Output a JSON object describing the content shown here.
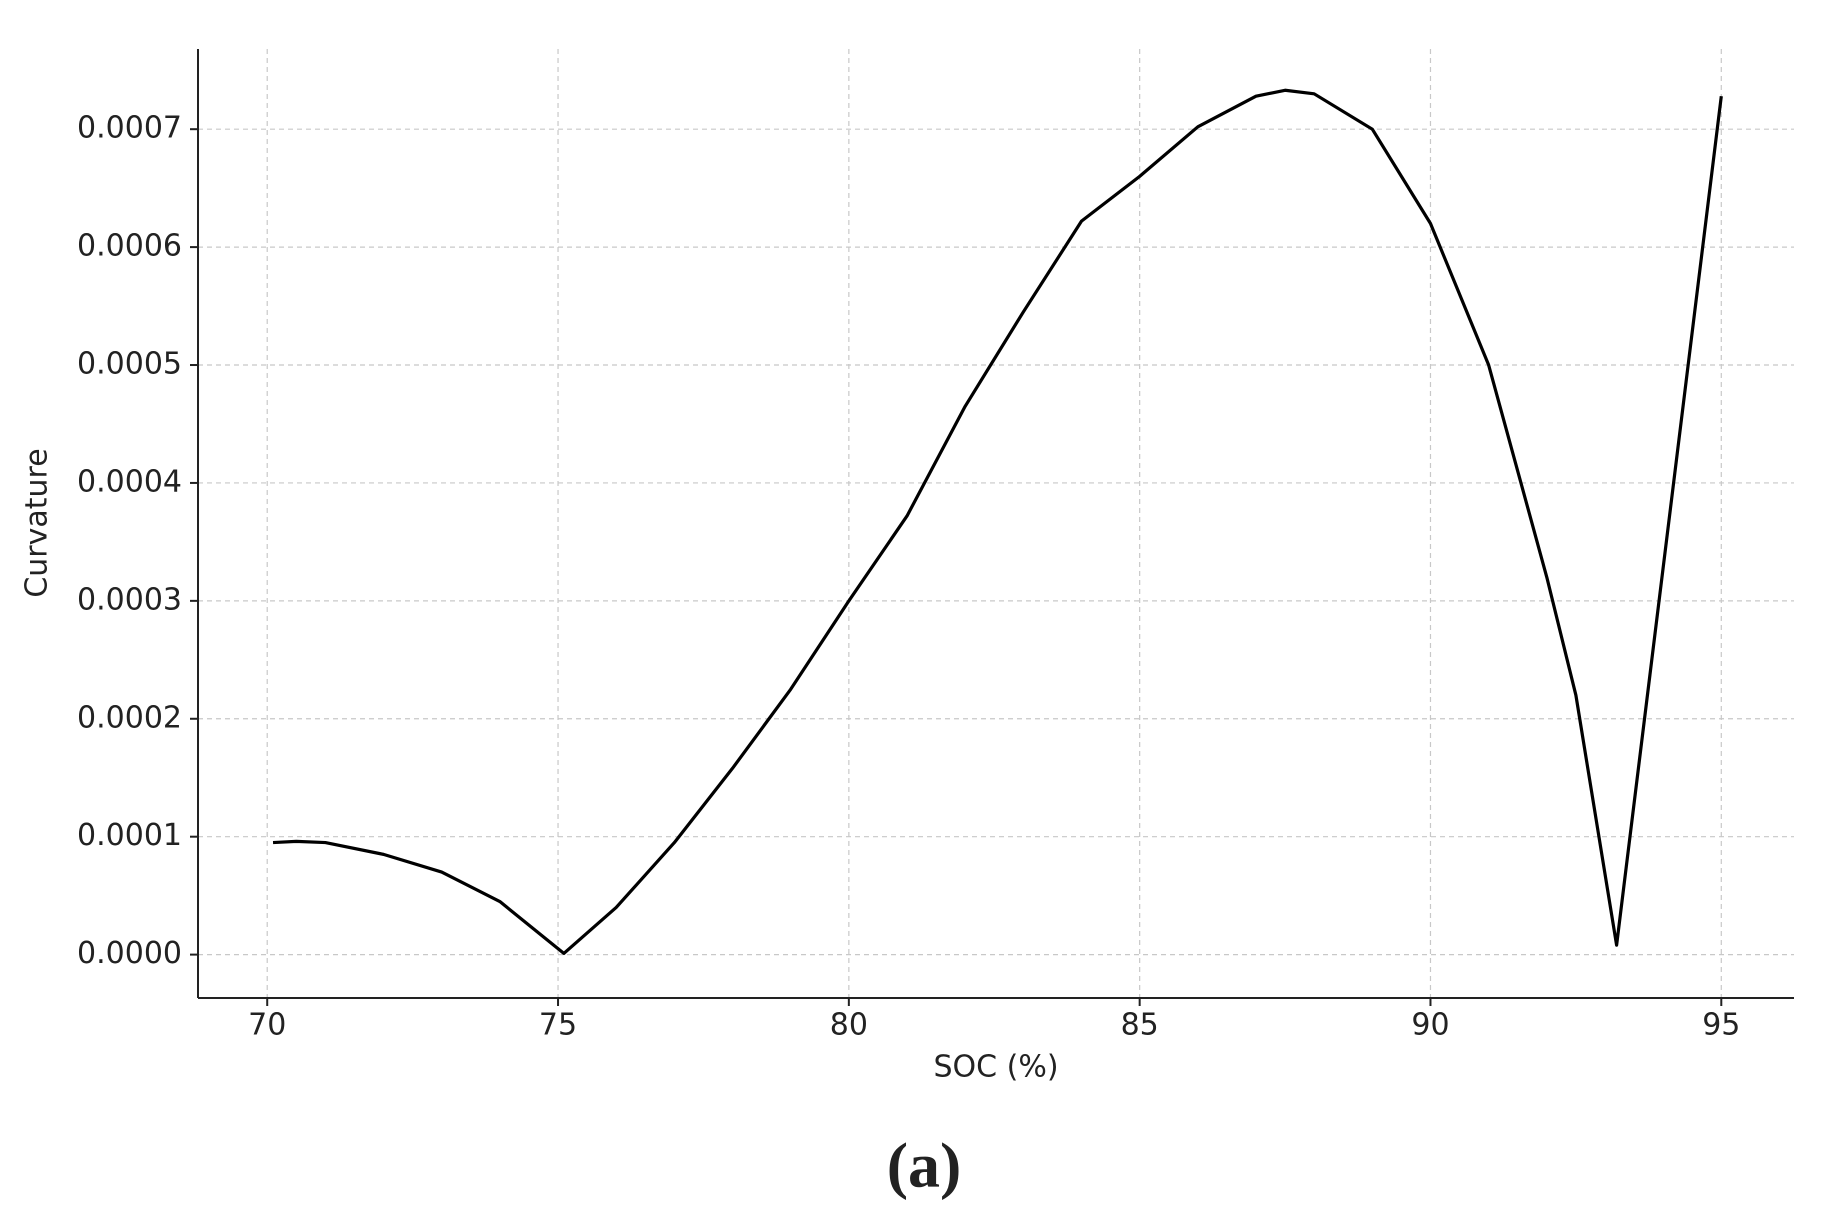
{
  "chart_data": {
    "type": "line",
    "x_label": "SOC (%)",
    "y_label": "Curvature",
    "caption": "(a)",
    "x": [
      70.1,
      70.5,
      71,
      72,
      73,
      74,
      75.1,
      76,
      77,
      78,
      79,
      80,
      81,
      82,
      83,
      84,
      85,
      86,
      87,
      87.5,
      88,
      89,
      90,
      91,
      92,
      92.5,
      93.2,
      95
    ],
    "series": [
      {
        "name": "Curvature",
        "color": "#000000",
        "values": [
          9.5e-05,
          9.6e-05,
          9.5e-05,
          8.5e-05,
          7e-05,
          4.5e-05,
          1e-06,
          4e-05,
          9.5e-05,
          0.000158,
          0.000225,
          0.0003,
          0.000372,
          0.000465,
          0.000545,
          0.000622,
          0.00066,
          0.000702,
          0.000728,
          0.000733,
          0.00073,
          0.0007,
          0.00062,
          0.0005,
          0.00032,
          0.00022,
          8e-06,
          0.000728
        ]
      }
    ],
    "xlim": [
      68.81,
      96.25
    ],
    "ylim": [
      -3.68e-05,
      0.000768
    ],
    "xticks": [
      70,
      75,
      80,
      85,
      90,
      95
    ],
    "yticks": [
      {
        "value": 0,
        "label": "0.0000"
      },
      {
        "value": 0.0001,
        "label": "0.0001"
      },
      {
        "value": 0.0002,
        "label": "0.0002"
      },
      {
        "value": 0.0003,
        "label": "0.0003"
      },
      {
        "value": 0.0004,
        "label": "0.0004"
      },
      {
        "value": 0.0005,
        "label": "0.0005"
      },
      {
        "value": 0.0006,
        "label": "0.0006"
      },
      {
        "value": 0.0007,
        "label": "0.0007"
      }
    ],
    "grid": true
  }
}
